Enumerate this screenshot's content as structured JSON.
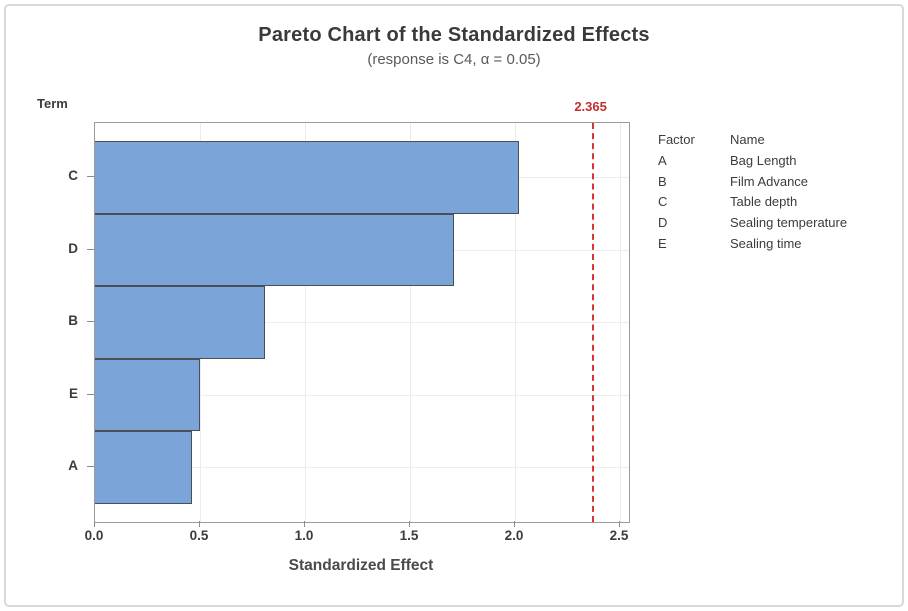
{
  "title": "Pareto Chart of the Standardized Effects",
  "subtitle": "(response is C4, α = 0.05)",
  "y_axis_label": "Term",
  "x_axis_label": "Standardized Effect",
  "reference_line_label": "2.365",
  "legend": {
    "header": {
      "factor": "Factor",
      "name": "Name"
    },
    "rows": [
      {
        "factor": "A",
        "name": "Bag Length"
      },
      {
        "factor": "B",
        "name": "Film Advance"
      },
      {
        "factor": "C",
        "name": "Table depth"
      },
      {
        "factor": "D",
        "name": "Sealing temperature"
      },
      {
        "factor": "E",
        "name": "Sealing time"
      }
    ]
  },
  "chart_data": {
    "type": "bar",
    "orientation": "horizontal",
    "title": "Pareto Chart of the Standardized Effects",
    "subtitle": "(response is C4, α = 0.05)",
    "response": "C4",
    "alpha": 0.05,
    "xlabel": "Standardized Effect",
    "ylabel": "Term",
    "categories": [
      "C",
      "D",
      "B",
      "E",
      "A"
    ],
    "values": [
      2.02,
      1.71,
      0.81,
      0.5,
      0.46
    ],
    "reference_line": 2.365,
    "x_ticks": [
      0.0,
      0.5,
      1.0,
      1.5,
      2.0,
      2.5
    ],
    "x_tick_labels": [
      "0.0",
      "0.5",
      "1.0",
      "1.5",
      "2.0",
      "2.5"
    ],
    "xlim": [
      0,
      2.543
    ],
    "grid": true,
    "legend_position": "right",
    "bar_color": "#7ba4d8",
    "bar_border_color": "#4a4f57",
    "reference_line_color": "#d93434",
    "gridline_color": "#ebebeb",
    "axis_color": "#9a9a9a",
    "text_color": "#3c3c3c"
  }
}
